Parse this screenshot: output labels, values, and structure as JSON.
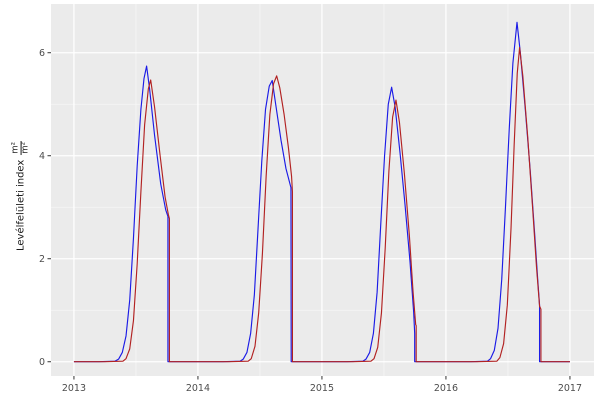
{
  "figure": {
    "background": "#ffffff",
    "panel_background": "#EBEBEB",
    "grid_major_color": "#FFFFFF",
    "grid_minor_color": "#F6F6F6",
    "tick_mark_color": "#333333",
    "tick_label_color": "#4D4D4D"
  },
  "ylabel": {
    "text": "Levélfelületi index",
    "unit_numerator": "m²",
    "unit_denominator": "m²"
  },
  "chart_data": {
    "type": "line",
    "title": "",
    "xlabel": "",
    "ylabel": "Levélfelületi index (m²/m²)",
    "xlim": [
      2012.815,
      2017.194
    ],
    "ylim": [
      -0.277,
      6.946
    ],
    "grid": true,
    "legend": "none",
    "x_ticks": {
      "values": [
        2013,
        2014,
        2015,
        2016,
        2017
      ],
      "labels": [
        "2013",
        "2014",
        "2015",
        "2016",
        "2017"
      ]
    },
    "y_ticks": {
      "values": [
        0,
        2,
        4,
        6
      ],
      "labels": [
        "0",
        "2",
        "4",
        "6"
      ]
    },
    "x_minor": [
      2013.5,
      2014.5,
      2015.5,
      2016.5
    ],
    "y_minor": [
      1,
      3,
      5,
      7
    ],
    "series": [
      {
        "name": "blue-series",
        "color": "#1B1BE6",
        "points": [
          [
            2013.0,
            0
          ],
          [
            2013.2,
            0
          ],
          [
            2013.33,
            0.01
          ],
          [
            2013.36,
            0.05
          ],
          [
            2013.39,
            0.18
          ],
          [
            2013.42,
            0.5
          ],
          [
            2013.45,
            1.2
          ],
          [
            2013.48,
            2.4
          ],
          [
            2013.51,
            3.8
          ],
          [
            2013.54,
            4.9
          ],
          [
            2013.565,
            5.5
          ],
          [
            2013.586,
            5.74
          ],
          [
            2013.61,
            5.3
          ],
          [
            2013.65,
            4.4
          ],
          [
            2013.7,
            3.45
          ],
          [
            2013.74,
            2.95
          ],
          [
            2013.758,
            2.82
          ],
          [
            2013.758,
            0
          ],
          [
            2013.85,
            0
          ],
          [
            2014.0,
            0
          ],
          [
            2014.2,
            0
          ],
          [
            2014.34,
            0.01
          ],
          [
            2014.365,
            0.05
          ],
          [
            2014.395,
            0.18
          ],
          [
            2014.425,
            0.55
          ],
          [
            2014.455,
            1.3
          ],
          [
            2014.485,
            2.6
          ],
          [
            2014.515,
            3.9
          ],
          [
            2014.545,
            4.9
          ],
          [
            2014.575,
            5.35
          ],
          [
            2014.599,
            5.46
          ],
          [
            2014.63,
            4.95
          ],
          [
            2014.67,
            4.3
          ],
          [
            2014.71,
            3.75
          ],
          [
            2014.75,
            3.38
          ],
          [
            2014.752,
            0
          ],
          [
            2014.85,
            0
          ],
          [
            2015.0,
            0
          ],
          [
            2015.2,
            0
          ],
          [
            2015.33,
            0.01
          ],
          [
            2015.355,
            0.05
          ],
          [
            2015.385,
            0.18
          ],
          [
            2015.415,
            0.55
          ],
          [
            2015.445,
            1.35
          ],
          [
            2015.475,
            2.7
          ],
          [
            2015.505,
            4.0
          ],
          [
            2015.535,
            5.0
          ],
          [
            2015.562,
            5.33
          ],
          [
            2015.59,
            4.95
          ],
          [
            2015.63,
            4.05
          ],
          [
            2015.67,
            3.05
          ],
          [
            2015.71,
            1.95
          ],
          [
            2015.74,
            0.95
          ],
          [
            2015.748,
            0.55
          ],
          [
            2015.748,
            0
          ],
          [
            2015.85,
            0
          ],
          [
            2016.0,
            0
          ],
          [
            2016.2,
            0
          ],
          [
            2016.335,
            0.01
          ],
          [
            2016.36,
            0.06
          ],
          [
            2016.39,
            0.22
          ],
          [
            2016.42,
            0.65
          ],
          [
            2016.45,
            1.6
          ],
          [
            2016.48,
            3.0
          ],
          [
            2016.51,
            4.5
          ],
          [
            2016.54,
            5.8
          ],
          [
            2016.573,
            6.59
          ],
          [
            2016.6,
            6.0
          ],
          [
            2016.64,
            4.9
          ],
          [
            2016.68,
            3.7
          ],
          [
            2016.715,
            2.5
          ],
          [
            2016.74,
            1.6
          ],
          [
            2016.755,
            1.1
          ],
          [
            2016.755,
            0
          ],
          [
            2016.85,
            0
          ],
          [
            2017.0,
            0
          ]
        ]
      },
      {
        "name": "red-series",
        "color": "#B22222",
        "points": [
          [
            2013.0,
            0
          ],
          [
            2013.25,
            0
          ],
          [
            2013.395,
            0.01
          ],
          [
            2013.42,
            0.06
          ],
          [
            2013.45,
            0.25
          ],
          [
            2013.48,
            0.8
          ],
          [
            2013.51,
            1.9
          ],
          [
            2013.54,
            3.3
          ],
          [
            2013.57,
            4.6
          ],
          [
            2013.6,
            5.3
          ],
          [
            2013.619,
            5.47
          ],
          [
            2013.65,
            4.95
          ],
          [
            2013.695,
            4.0
          ],
          [
            2013.735,
            3.2
          ],
          [
            2013.762,
            2.85
          ],
          [
            2013.77,
            2.78
          ],
          [
            2013.77,
            0
          ],
          [
            2013.85,
            0
          ],
          [
            2014.0,
            0
          ],
          [
            2014.25,
            0
          ],
          [
            2014.405,
            0.01
          ],
          [
            2014.43,
            0.06
          ],
          [
            2014.46,
            0.3
          ],
          [
            2014.49,
            0.95
          ],
          [
            2014.52,
            2.1
          ],
          [
            2014.55,
            3.6
          ],
          [
            2014.58,
            4.8
          ],
          [
            2014.61,
            5.4
          ],
          [
            2014.635,
            5.55
          ],
          [
            2014.66,
            5.32
          ],
          [
            2014.695,
            4.8
          ],
          [
            2014.73,
            4.15
          ],
          [
            2014.755,
            3.6
          ],
          [
            2014.762,
            3.3
          ],
          [
            2014.762,
            0
          ],
          [
            2014.85,
            0
          ],
          [
            2015.0,
            0
          ],
          [
            2015.25,
            0
          ],
          [
            2015.395,
            0.01
          ],
          [
            2015.42,
            0.06
          ],
          [
            2015.45,
            0.28
          ],
          [
            2015.48,
            0.95
          ],
          [
            2015.51,
            2.2
          ],
          [
            2015.54,
            3.7
          ],
          [
            2015.57,
            4.75
          ],
          [
            2015.597,
            5.08
          ],
          [
            2015.625,
            4.65
          ],
          [
            2015.665,
            3.65
          ],
          [
            2015.705,
            2.45
          ],
          [
            2015.735,
            1.35
          ],
          [
            2015.756,
            0.72
          ],
          [
            2015.76,
            0.7
          ],
          [
            2015.76,
            0
          ],
          [
            2015.85,
            0
          ],
          [
            2016.0,
            0
          ],
          [
            2016.25,
            0
          ],
          [
            2016.41,
            0.01
          ],
          [
            2016.435,
            0.08
          ],
          [
            2016.465,
            0.35
          ],
          [
            2016.495,
            1.1
          ],
          [
            2016.525,
            2.6
          ],
          [
            2016.55,
            4.2
          ],
          [
            2016.575,
            5.6
          ],
          [
            2016.594,
            6.1
          ],
          [
            2016.62,
            5.55
          ],
          [
            2016.66,
            4.35
          ],
          [
            2016.7,
            2.95
          ],
          [
            2016.73,
            1.85
          ],
          [
            2016.755,
            1.08
          ],
          [
            2016.766,
            1.02
          ],
          [
            2016.766,
            0
          ],
          [
            2016.85,
            0
          ],
          [
            2017.0,
            0
          ]
        ]
      }
    ]
  }
}
